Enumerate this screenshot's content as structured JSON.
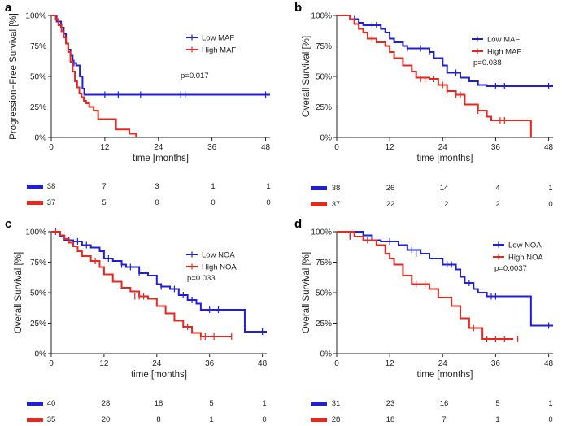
{
  "chart_data": [
    {
      "type": "line",
      "panel": "a",
      "ylabel": "Progression−Free Survival [%]",
      "xlabel": "time [months]",
      "xlim": [
        0,
        49
      ],
      "ylim": [
        0,
        100
      ],
      "xticks": [
        "0",
        "12",
        "24",
        "36",
        "48"
      ],
      "yticks": [
        "0%",
        "25%",
        "50%",
        "75%",
        "100%"
      ],
      "pvalue": "p=0.017",
      "series": [
        {
          "name": "Low MAF",
          "color": "#1f1fd6",
          "x": [
            0,
            1.2,
            2.2,
            2.8,
            3.3,
            3.8,
            4.3,
            4.8,
            5.6,
            6.4,
            7.0,
            7.4,
            49
          ],
          "y": [
            100,
            95,
            90,
            85,
            77,
            72,
            67,
            61,
            59,
            50,
            40,
            35,
            35
          ],
          "censor_x": [
            5.1,
            12,
            15,
            20,
            29,
            30,
            48
          ],
          "censor_y": [
            61,
            35,
            35,
            35,
            35,
            35,
            35
          ]
        },
        {
          "name": "High MAF",
          "color": "#e8271e",
          "x": [
            0,
            1.0,
            1.6,
            2.3,
            2.8,
            3.3,
            3.8,
            4.3,
            4.8,
            5.3,
            5.8,
            6.3,
            6.8,
            7.3,
            7.8,
            8.5,
            9.5,
            10.5,
            14.5,
            17.5,
            19.0
          ],
          "y": [
            100,
            97,
            92,
            87,
            82,
            77,
            70,
            62,
            54,
            46,
            41,
            36,
            33,
            30,
            28,
            25,
            22,
            15,
            6.5,
            3.0,
            0
          ],
          "censor_x": [],
          "censor_y": []
        }
      ],
      "risk": [
        [
          "38",
          "7",
          "3",
          "1",
          "1"
        ],
        [
          "37",
          "5",
          "0",
          "0",
          "0"
        ]
      ]
    },
    {
      "type": "line",
      "panel": "b",
      "ylabel": "Overall Survival [%]",
      "xlabel": "time [months]",
      "xlim": [
        0,
        49
      ],
      "ylim": [
        0,
        100
      ],
      "xticks": [
        "0",
        "12",
        "24",
        "36",
        "48"
      ],
      "yticks": [
        "0%",
        "25%",
        "50%",
        "75%",
        "100%"
      ],
      "pvalue": "p=0.038",
      "series": [
        {
          "name": "Low MAF",
          "color": "#1f1fd6",
          "x": [
            0,
            3,
            5,
            6,
            7,
            10,
            11,
            12,
            13,
            15,
            16,
            17,
            21,
            22,
            24,
            25,
            28,
            30,
            32,
            34,
            49
          ],
          "y": [
            100,
            97,
            94,
            92,
            92,
            89,
            86,
            81,
            78,
            75,
            73,
            73,
            70,
            65,
            59,
            53,
            49,
            46,
            43,
            42,
            42
          ],
          "censor_x": [
            4,
            8,
            9,
            16,
            19,
            21,
            27,
            36,
            38,
            48
          ],
          "censor_y": [
            97,
            92,
            92,
            73,
            73,
            70,
            53,
            42,
            42,
            42
          ]
        },
        {
          "name": "High MAF",
          "color": "#e8271e",
          "x": [
            0,
            3,
            4,
            5,
            6,
            7,
            9,
            11,
            12,
            13,
            15,
            17,
            18,
            21,
            23,
            25,
            27,
            29,
            32,
            34,
            35,
            43,
            44
          ],
          "y": [
            100,
            97,
            93,
            89,
            86,
            81,
            78,
            75,
            70,
            65,
            59,
            54,
            49,
            48,
            43,
            38,
            35,
            27,
            22,
            17,
            14,
            14,
            0
          ],
          "censor_x": [
            8,
            19,
            20,
            22,
            24,
            25,
            27,
            28,
            32,
            37,
            38
          ],
          "censor_y": [
            81,
            48,
            48,
            48,
            43,
            38,
            35,
            35,
            22,
            14,
            14
          ]
        }
      ],
      "risk": [
        [
          "38",
          "26",
          "14",
          "4",
          "1"
        ],
        [
          "37",
          "22",
          "12",
          "2",
          "0"
        ]
      ]
    },
    {
      "type": "line",
      "panel": "c",
      "ylabel": "Overall Survival [%]",
      "xlabel": "time [months]",
      "xlim": [
        0,
        49
      ],
      "ylim": [
        0,
        100
      ],
      "xticks": [
        "0",
        "12",
        "24",
        "36",
        "48"
      ],
      "yticks": [
        "0%",
        "25%",
        "50%",
        "75%",
        "100%"
      ],
      "pvalue": "p=0.033",
      "series": [
        {
          "name": "Low NOA",
          "color": "#1f1fd6",
          "x": [
            0,
            2,
            3,
            5,
            7,
            9,
            11,
            12,
            14,
            16,
            17,
            20,
            22,
            24,
            25,
            27,
            29,
            31,
            33,
            34,
            43,
            44,
            49
          ],
          "y": [
            100,
            96,
            93,
            92,
            89,
            87,
            84,
            78,
            76,
            73,
            71,
            66,
            64,
            57,
            55,
            53,
            48,
            44,
            41,
            36,
            36,
            18,
            18
          ],
          "censor_x": [
            4,
            6,
            8,
            13,
            16,
            18,
            20,
            25,
            28,
            30,
            32,
            36,
            38,
            48
          ],
          "censor_y": [
            93,
            92,
            89,
            78,
            73,
            71,
            66,
            55,
            53,
            48,
            44,
            36,
            36,
            18
          ]
        },
        {
          "name": "High NOA",
          "color": "#e8271e",
          "x": [
            0,
            2,
            3,
            4,
            5,
            6,
            7,
            9,
            11,
            12,
            14,
            16,
            18,
            20,
            22,
            24,
            26,
            28,
            30,
            32,
            34,
            41
          ],
          "y": [
            100,
            97,
            94,
            91,
            88,
            84,
            80,
            76,
            71,
            65,
            59,
            54,
            51,
            47,
            45,
            39,
            33,
            27,
            22,
            17,
            14,
            14
          ],
          "censor_x": [
            1,
            10,
            19,
            20,
            21,
            31,
            34,
            35,
            37,
            41
          ],
          "censor_y": [
            100,
            76,
            47,
            47,
            47,
            22,
            14,
            14,
            14,
            14
          ]
        }
      ],
      "risk": [
        [
          "40",
          "28",
          "18",
          "5",
          "1"
        ],
        [
          "35",
          "20",
          "8",
          "1",
          "0"
        ]
      ]
    },
    {
      "type": "line",
      "panel": "d",
      "ylabel": "Overall Survival [%]",
      "xlabel": "time [months]",
      "xlim": [
        0,
        49
      ],
      "ylim": [
        0,
        100
      ],
      "xticks": [
        "0",
        "12",
        "24",
        "36",
        "48"
      ],
      "yticks": [
        "0%",
        "25%",
        "50%",
        "75%",
        "100%"
      ],
      "pvalue": "p=0.0037",
      "series": [
        {
          "name": "Low NOA",
          "color": "#1f1fd6",
          "x": [
            0,
            6,
            8,
            10,
            14,
            16,
            19,
            21,
            24,
            27,
            28,
            29,
            31,
            32,
            34,
            43,
            44,
            49
          ],
          "y": [
            100,
            97,
            93,
            92,
            89,
            85,
            82,
            78,
            73,
            69,
            63,
            58,
            53,
            50,
            47,
            47,
            23,
            23
          ],
          "censor_x": [
            3,
            7,
            12,
            17,
            18,
            25,
            26,
            30,
            35,
            36,
            48
          ],
          "censor_y": [
            97,
            93,
            92,
            85,
            82,
            73,
            73,
            58,
            47,
            47,
            23
          ]
        },
        {
          "name": "High NOA",
          "color": "#e8271e",
          "x": [
            0,
            4,
            6,
            9,
            11,
            12,
            13,
            15,
            17,
            21,
            23,
            26,
            28,
            30,
            33,
            40
          ],
          "y": [
            100,
            96,
            93,
            89,
            82,
            78,
            73,
            64,
            57,
            53,
            46,
            39,
            29,
            21,
            12,
            12
          ],
          "censor_x": [
            3,
            18,
            20,
            31,
            34,
            36,
            38,
            41
          ],
          "censor_y": [
            96,
            57,
            57,
            21,
            12,
            12,
            12,
            12
          ]
        }
      ],
      "risk": [
        [
          "31",
          "23",
          "16",
          "5",
          "1"
        ],
        [
          "28",
          "18",
          "7",
          "1",
          "0"
        ]
      ]
    }
  ]
}
